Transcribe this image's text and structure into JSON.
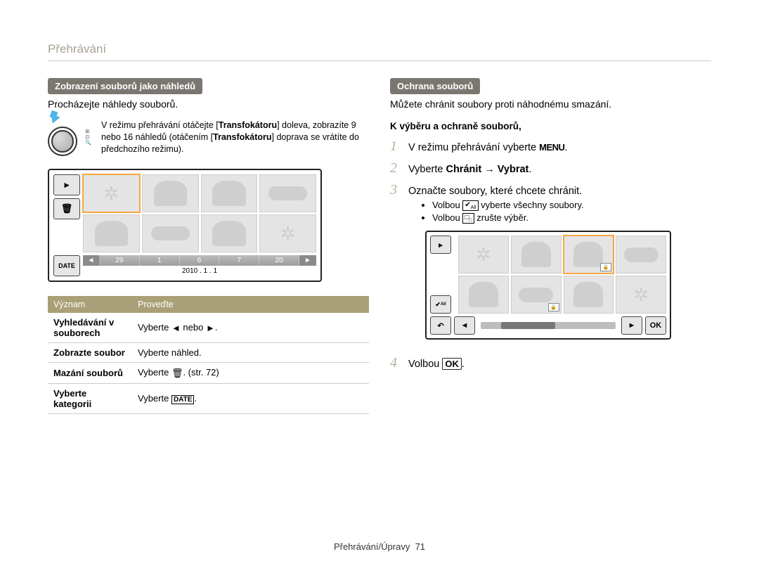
{
  "breadcrumb": "Přehrávání",
  "left": {
    "section": "Zobrazení souborů jako náhledů",
    "sub": "Procházejte náhledy souborů.",
    "trans_pre": "V režimu přehrávání otáčejte [",
    "trans_bold1": "Transfokátoru",
    "trans_mid1": "] doleva, zobrazíte 9 nebo 16 náhledů (otáčením [",
    "trans_bold2": "Transfokátoru",
    "trans_mid2": "] doprava se vrátíte do předchozího režimu).",
    "date_btn": "DATE",
    "timeline": [
      "29",
      "1",
      "6",
      "7",
      "20"
    ],
    "date": "2010 . 1 . 1",
    "table": {
      "h1": "Význam",
      "h2": "Proveďte",
      "rows": [
        {
          "k": "Vyhledávání v souborech",
          "v_pre": "Vyberte ",
          "v_mid": " nebo ",
          "v_post": "."
        },
        {
          "k": "Zobrazte soubor",
          "v": "Vyberte náhled."
        },
        {
          "k": "Mazání souborů",
          "v_pre": "Vyberte ",
          "v_post": ". (str. 72)"
        },
        {
          "k": "Vyberte kategorii",
          "v_pre": "Vyberte ",
          "v_post": "."
        }
      ]
    }
  },
  "right": {
    "section": "Ochrana souborů",
    "sub": "Můžete chránit soubory proti náhodnému smazání.",
    "subhead": "K výběru a ochraně souborů,",
    "step1_pre": "V režimu přehrávání vyberte ",
    "step1_post": ".",
    "step2_pre": "Vyberte ",
    "step2_b1": "Chránit",
    "step2_arrow": " → ",
    "step2_b2": "Vybrat",
    "step2_post": ".",
    "step3": "Označte soubory, které chcete chránit.",
    "b1_pre": "Volbou ",
    "b1_post": " vyberte všechny soubory.",
    "b2_pre": "Volbou ",
    "b2_post": " zrušte výběr.",
    "step4_pre": "Volbou ",
    "step4_post": ".",
    "ok_label": "OK"
  },
  "footer": {
    "text": "Přehrávání/Úpravy",
    "page": "71"
  }
}
